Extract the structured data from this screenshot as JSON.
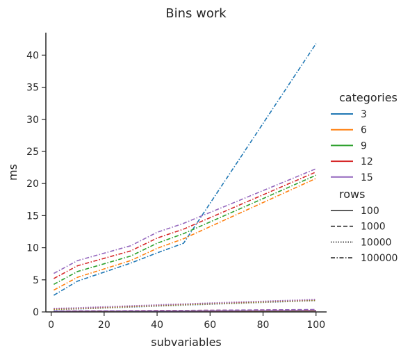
{
  "chart_data": {
    "type": "line",
    "title": "Bins work",
    "xlabel": "subvariables",
    "ylabel": "ms",
    "xlim": [
      -2,
      104
    ],
    "ylim": [
      0,
      43.5
    ],
    "xticks": [
      0,
      20,
      40,
      60,
      80,
      100
    ],
    "yticks": [
      0,
      5,
      10,
      15,
      20,
      25,
      30,
      35,
      40
    ],
    "x": [
      1,
      10,
      30,
      40,
      50,
      100
    ],
    "grid": false,
    "legend_position": "right",
    "legend": {
      "hue_title": "categories",
      "hue_entries": [
        {
          "label": "3",
          "color": "#1f77b4"
        },
        {
          "label": "6",
          "color": "#ff7f0e"
        },
        {
          "label": "9",
          "color": "#2ca02c"
        },
        {
          "label": "12",
          "color": "#d62728"
        },
        {
          "label": "15",
          "color": "#9467bd"
        }
      ],
      "style_title": "rows",
      "style_entries": [
        {
          "label": "100",
          "dash": "solid"
        },
        {
          "label": "1000",
          "dash": "dashed"
        },
        {
          "label": "10000",
          "dash": "dotted"
        },
        {
          "label": "100000",
          "dash": "dashdot"
        }
      ]
    },
    "series": [
      {
        "categories": "3",
        "rows": "100",
        "color": "#1f77b4",
        "dash": "solid",
        "values": [
          0.05,
          0.06,
          0.08,
          0.09,
          0.1,
          0.15
        ]
      },
      {
        "categories": "6",
        "rows": "100",
        "color": "#ff7f0e",
        "dash": "solid",
        "values": [
          0.06,
          0.07,
          0.09,
          0.1,
          0.11,
          0.17
        ]
      },
      {
        "categories": "9",
        "rows": "100",
        "color": "#2ca02c",
        "dash": "solid",
        "values": [
          0.07,
          0.08,
          0.1,
          0.11,
          0.12,
          0.19
        ]
      },
      {
        "categories": "12",
        "rows": "100",
        "color": "#d62728",
        "dash": "solid",
        "values": [
          0.08,
          0.09,
          0.11,
          0.12,
          0.13,
          0.21
        ]
      },
      {
        "categories": "15",
        "rows": "100",
        "color": "#9467bd",
        "dash": "solid",
        "values": [
          0.09,
          0.1,
          0.12,
          0.13,
          0.14,
          0.23
        ]
      },
      {
        "categories": "3",
        "rows": "1000",
        "color": "#1f77b4",
        "dash": "dashed",
        "values": [
          0.1,
          0.12,
          0.16,
          0.18,
          0.2,
          0.3
        ]
      },
      {
        "categories": "6",
        "rows": "1000",
        "color": "#ff7f0e",
        "dash": "dashed",
        "values": [
          0.11,
          0.13,
          0.17,
          0.19,
          0.21,
          0.32
        ]
      },
      {
        "categories": "9",
        "rows": "1000",
        "color": "#2ca02c",
        "dash": "dashed",
        "values": [
          0.12,
          0.14,
          0.18,
          0.2,
          0.22,
          0.34
        ]
      },
      {
        "categories": "12",
        "rows": "1000",
        "color": "#d62728",
        "dash": "dashed",
        "values": [
          0.13,
          0.15,
          0.19,
          0.21,
          0.23,
          0.36
        ]
      },
      {
        "categories": "15",
        "rows": "1000",
        "color": "#9467bd",
        "dash": "dashed",
        "values": [
          0.14,
          0.16,
          0.2,
          0.22,
          0.24,
          0.38
        ]
      },
      {
        "categories": "3",
        "rows": "10000",
        "color": "#1f77b4",
        "dash": "dotted",
        "values": [
          0.35,
          0.45,
          0.75,
          0.9,
          1.05,
          1.75
        ]
      },
      {
        "categories": "6",
        "rows": "10000",
        "color": "#ff7f0e",
        "dash": "dotted",
        "values": [
          0.4,
          0.5,
          0.8,
          0.95,
          1.1,
          1.8
        ]
      },
      {
        "categories": "9",
        "rows": "10000",
        "color": "#2ca02c",
        "dash": "dotted",
        "values": [
          0.45,
          0.55,
          0.85,
          1.0,
          1.15,
          1.85
        ]
      },
      {
        "categories": "12",
        "rows": "10000",
        "color": "#d62728",
        "dash": "dotted",
        "values": [
          0.5,
          0.6,
          0.9,
          1.05,
          1.2,
          1.9
        ]
      },
      {
        "categories": "15",
        "rows": "10000",
        "color": "#9467bd",
        "dash": "dotted",
        "values": [
          0.55,
          0.65,
          0.95,
          1.1,
          1.25,
          1.95
        ]
      },
      {
        "categories": "3",
        "rows": "100000",
        "color": "#1f77b4",
        "dash": "dashdot",
        "values": [
          2.6,
          4.8,
          7.6,
          9.2,
          10.7,
          41.8
        ]
      },
      {
        "categories": "6",
        "rows": "100000",
        "color": "#ff7f0e",
        "dash": "dashdot",
        "values": [
          3.4,
          5.4,
          8.0,
          9.9,
          11.4,
          20.8
        ]
      },
      {
        "categories": "9",
        "rows": "100000",
        "color": "#2ca02c",
        "dash": "dashdot",
        "values": [
          4.3,
          6.3,
          8.7,
          10.7,
          12.2,
          21.3
        ]
      },
      {
        "categories": "12",
        "rows": "100000",
        "color": "#d62728",
        "dash": "dashdot",
        "values": [
          5.2,
          7.2,
          9.5,
          11.5,
          12.9,
          21.8
        ]
      },
      {
        "categories": "15",
        "rows": "100000",
        "color": "#9467bd",
        "dash": "dashdot",
        "values": [
          6.0,
          8.0,
          10.3,
          12.4,
          13.8,
          22.3
        ]
      }
    ]
  }
}
